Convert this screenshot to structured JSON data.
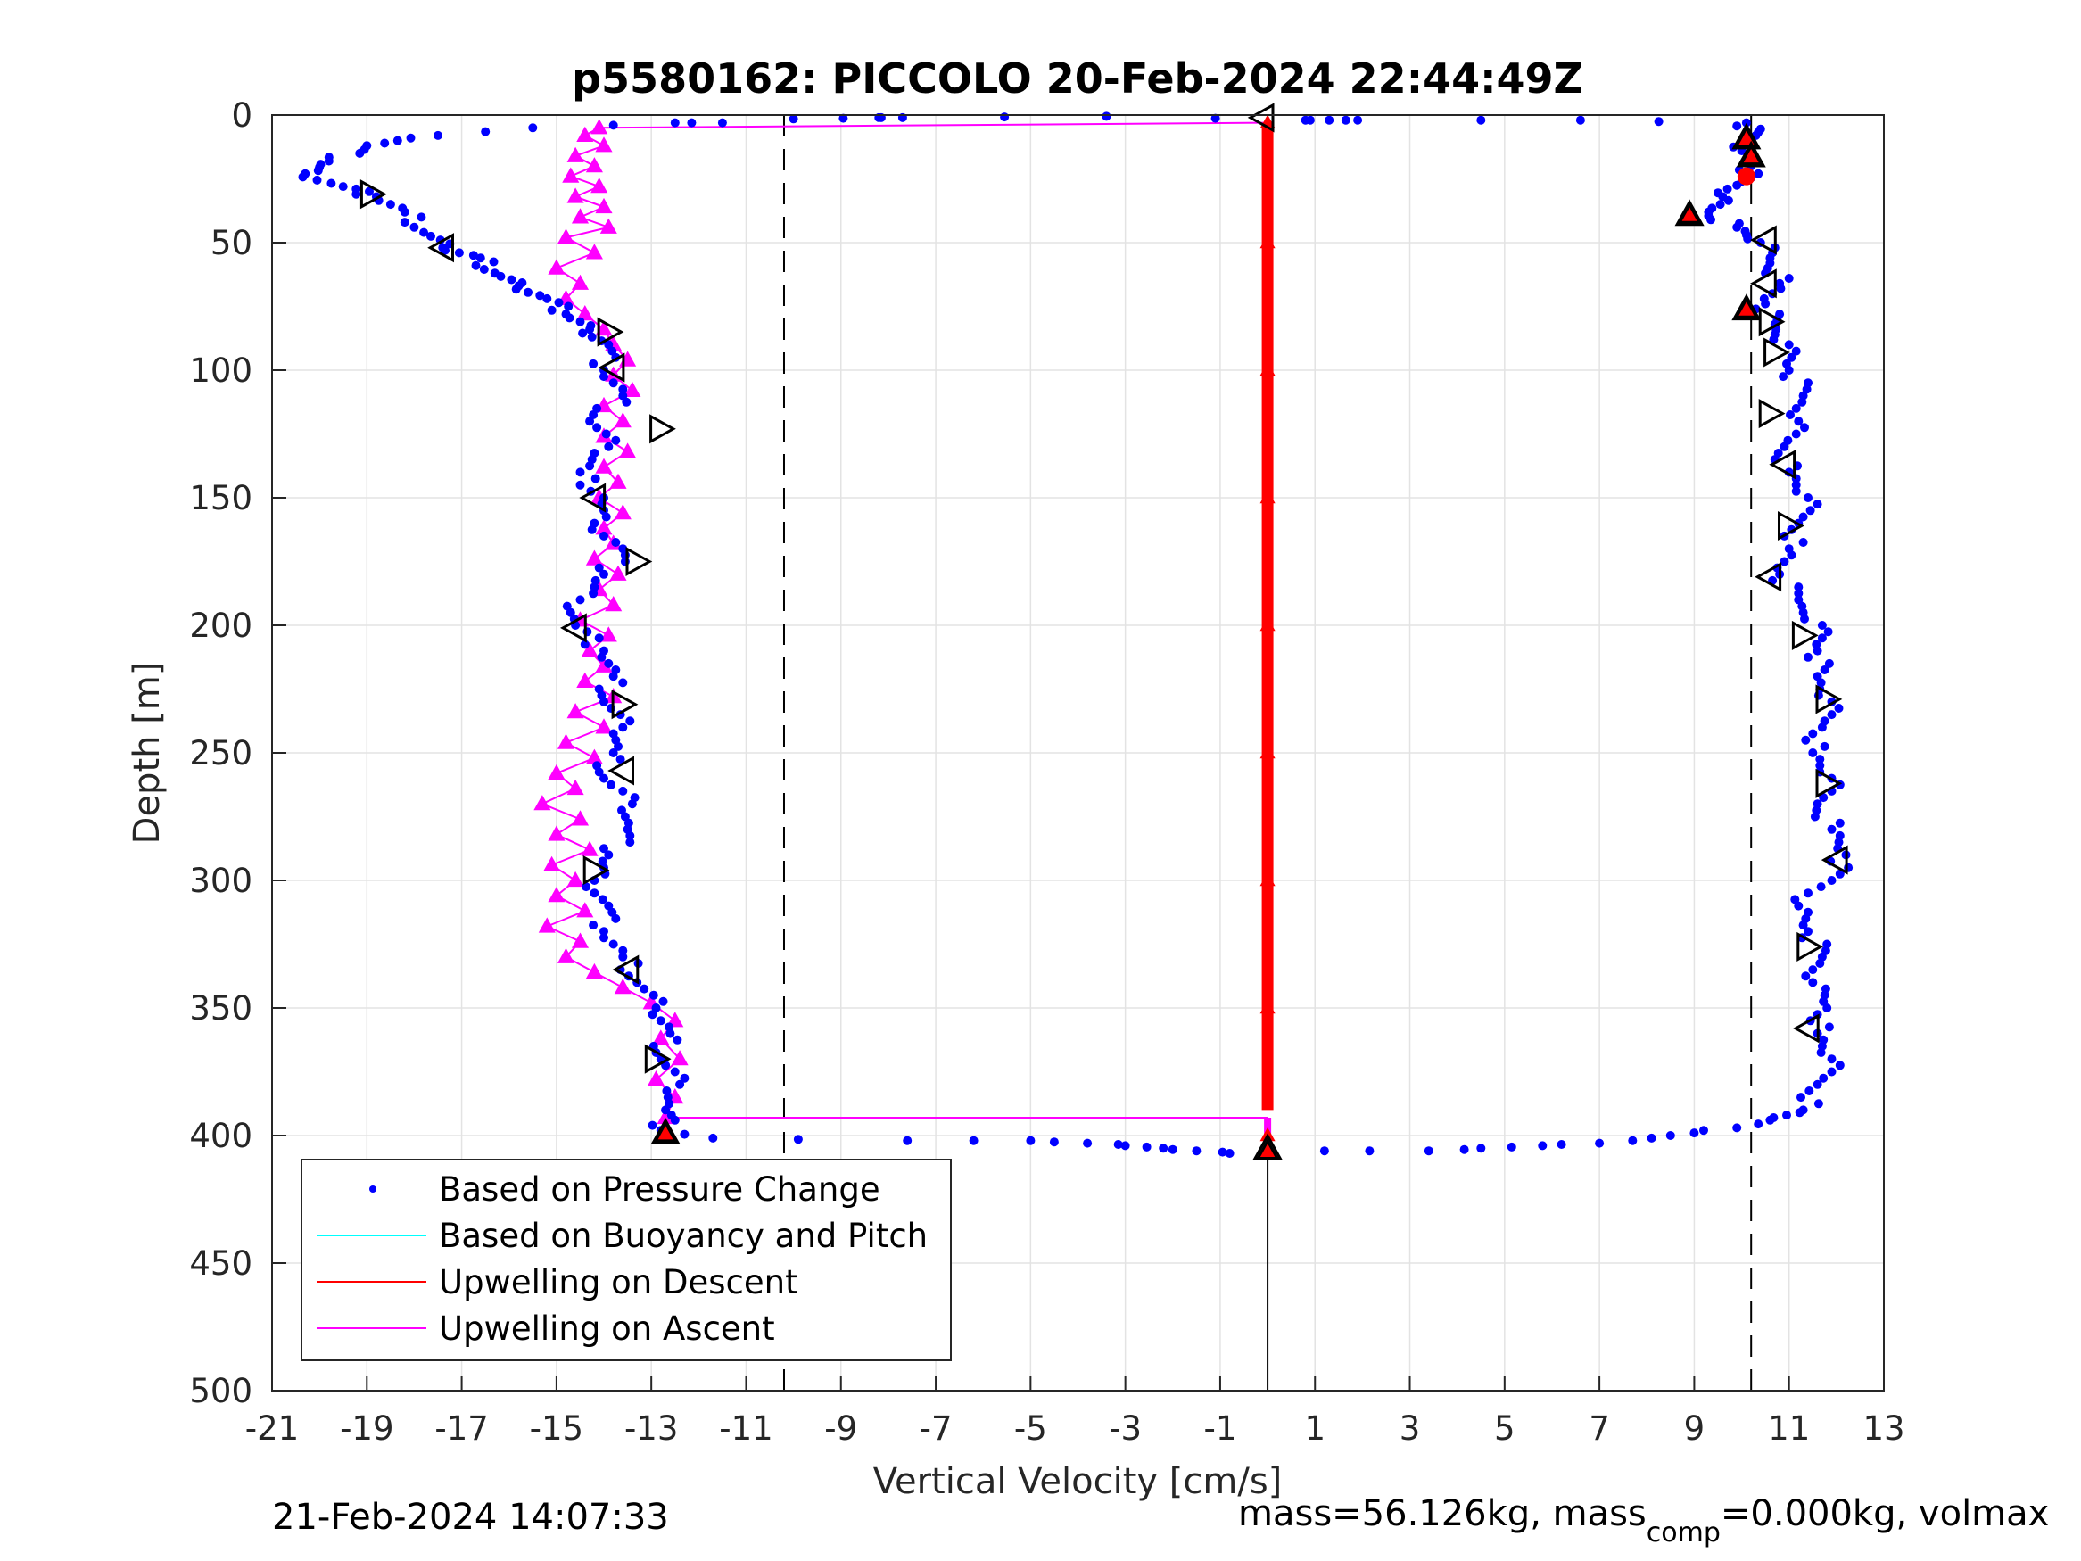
{
  "chart_data": {
    "type": "scatter",
    "title": "p5580162: PICCOLO 20-Feb-2024 22:44:49Z",
    "xlabel": "Vertical Velocity [cm/s]",
    "ylabel": "Depth [m]",
    "xlim": [
      -21,
      13
    ],
    "ylim": [
      0,
      500
    ],
    "y_reversed": true,
    "grid": true,
    "x_ticks": [
      "-21",
      "-19",
      "-17",
      "-15",
      "-13",
      "-11",
      "-9",
      "-7",
      "-5",
      "-3",
      "-1",
      "1",
      "3",
      "5",
      "7",
      "9",
      "11",
      "13"
    ],
    "y_ticks": [
      "0",
      "50",
      "100",
      "150",
      "200",
      "250",
      "300",
      "350",
      "400",
      "450",
      "500"
    ],
    "legend_position": "bottom-left",
    "reference_lines": {
      "dashed_x": [
        -10.2,
        10.2
      ],
      "solid_x": [
        0
      ]
    },
    "series": [
      {
        "name": "Based on Pressure Change",
        "style": "dots",
        "color": "#0000ff",
        "descent": [
          [
            -11.5,
            3
          ],
          [
            -12.5,
            3
          ],
          [
            -15.5,
            5
          ],
          [
            -17.5,
            8
          ],
          [
            -19.0,
            12
          ],
          [
            -19.8,
            18
          ],
          [
            -20.3,
            23
          ],
          [
            -19.5,
            28
          ],
          [
            -18.8,
            32
          ],
          [
            -18.2,
            38
          ],
          [
            -17.8,
            46
          ],
          [
            -17.4,
            52
          ],
          [
            -16.6,
            56
          ],
          [
            -16.3,
            62
          ],
          [
            -15.8,
            67
          ],
          [
            -15.2,
            72
          ],
          [
            -14.8,
            78
          ],
          [
            -14.3,
            84
          ],
          [
            -13.9,
            90
          ],
          [
            -14.0,
            100
          ],
          [
            -13.6,
            110
          ],
          [
            -14.3,
            120
          ],
          [
            -13.9,
            130
          ],
          [
            -14.5,
            140
          ],
          [
            -14.0,
            150
          ],
          [
            -14.2,
            160
          ],
          [
            -13.6,
            170
          ],
          [
            -14.0,
            180
          ],
          [
            -14.5,
            190
          ],
          [
            -14.6,
            200
          ],
          [
            -14.0,
            210
          ],
          [
            -13.8,
            220
          ],
          [
            -14.0,
            230
          ],
          [
            -13.6,
            240
          ],
          [
            -13.8,
            250
          ],
          [
            -14.0,
            260
          ],
          [
            -13.4,
            270
          ],
          [
            -13.5,
            280
          ],
          [
            -13.9,
            290
          ],
          [
            -14.2,
            300
          ],
          [
            -13.9,
            310
          ],
          [
            -14.0,
            320
          ],
          [
            -13.6,
            330
          ],
          [
            -13.3,
            340
          ],
          [
            -12.9,
            350
          ],
          [
            -12.6,
            360
          ],
          [
            -12.8,
            370
          ],
          [
            -12.4,
            380
          ],
          [
            -12.7,
            390
          ],
          [
            -12.8,
            398
          ],
          [
            -11.7,
            401
          ],
          [
            -7.6,
            402
          ],
          [
            -5.0,
            402
          ],
          [
            -3.8,
            403
          ],
          [
            -3.0,
            404
          ],
          [
            -2.2,
            405
          ],
          [
            -1.5,
            406
          ],
          [
            -0.8,
            407
          ]
        ],
        "ascent": [
          [
            1.2,
            406
          ],
          [
            3.4,
            406
          ],
          [
            4.5,
            405
          ],
          [
            5.8,
            404
          ],
          [
            7.0,
            403
          ],
          [
            8.1,
            401
          ],
          [
            9.0,
            399
          ],
          [
            9.9,
            397
          ],
          [
            10.6,
            394
          ],
          [
            11.3,
            390
          ],
          [
            11.6,
            380
          ],
          [
            11.9,
            370
          ],
          [
            11.6,
            360
          ],
          [
            11.8,
            350
          ],
          [
            11.5,
            340
          ],
          [
            11.7,
            330
          ],
          [
            11.4,
            320
          ],
          [
            11.2,
            310
          ],
          [
            11.9,
            300
          ],
          [
            12.2,
            290
          ],
          [
            11.9,
            280
          ],
          [
            11.6,
            270
          ],
          [
            11.9,
            260
          ],
          [
            11.5,
            250
          ],
          [
            11.7,
            240
          ],
          [
            11.9,
            230
          ],
          [
            11.6,
            220
          ],
          [
            11.6,
            210
          ],
          [
            11.7,
            200
          ],
          [
            11.2,
            190
          ],
          [
            10.8,
            180
          ],
          [
            11.0,
            170
          ],
          [
            11.2,
            160
          ],
          [
            11.4,
            150
          ],
          [
            11.0,
            140
          ],
          [
            10.9,
            130
          ],
          [
            11.2,
            120
          ],
          [
            11.3,
            110
          ],
          [
            11.0,
            100
          ],
          [
            11.0,
            90
          ],
          [
            10.7,
            82
          ],
          [
            10.5,
            74
          ],
          [
            10.8,
            66
          ],
          [
            10.6,
            58
          ],
          [
            10.4,
            50
          ],
          [
            9.9,
            44
          ],
          [
            9.3,
            38
          ],
          [
            9.6,
            32
          ],
          [
            10.0,
            26
          ],
          [
            10.2,
            20
          ],
          [
            10.0,
            14
          ],
          [
            10.3,
            8
          ],
          [
            10.1,
            3
          ],
          [
            6.6,
            2
          ],
          [
            1.9,
            2
          ],
          [
            1.3,
            2
          ],
          [
            0.8,
            2
          ],
          [
            -3.4,
            0.5
          ],
          [
            -7.7,
            1
          ],
          [
            -8.2,
            1
          ],
          [
            -10.0,
            1.5
          ]
        ]
      },
      {
        "name": "Based on Buoyancy and Pitch",
        "style": "line",
        "color": "#00ffff",
        "descent": [],
        "ascent": []
      },
      {
        "name": "Upwelling on Descent",
        "style": "line+triangle",
        "color": "#ff0000",
        "descent": [
          [
            0,
            3
          ],
          [
            0,
            50
          ],
          [
            0,
            100
          ],
          [
            0,
            150
          ],
          [
            0,
            200
          ],
          [
            0,
            250
          ],
          [
            0,
            300
          ],
          [
            0,
            350
          ],
          [
            0,
            400
          ],
          [
            0,
            406
          ]
        ],
        "ascent": []
      },
      {
        "name": "Upwelling on Ascent",
        "style": "line+triangle",
        "color": "#ff00ff",
        "descent": [],
        "ascent": [
          [
            -12.7,
            393
          ],
          [
            -12.5,
            385
          ],
          [
            -12.9,
            378
          ],
          [
            -12.4,
            370
          ],
          [
            -12.8,
            362
          ],
          [
            -12.5,
            355
          ],
          [
            -13.0,
            348
          ],
          [
            -13.6,
            342
          ],
          [
            -14.2,
            336
          ],
          [
            -14.8,
            330
          ],
          [
            -14.5,
            324
          ],
          [
            -15.2,
            318
          ],
          [
            -14.4,
            312
          ],
          [
            -15.0,
            306
          ],
          [
            -14.6,
            300
          ],
          [
            -15.1,
            294
          ],
          [
            -14.3,
            288
          ],
          [
            -15.0,
            282
          ],
          [
            -14.5,
            276
          ],
          [
            -15.3,
            270
          ],
          [
            -14.6,
            264
          ],
          [
            -15.0,
            258
          ],
          [
            -14.2,
            252
          ],
          [
            -14.8,
            246
          ],
          [
            -14.0,
            240
          ],
          [
            -14.6,
            234
          ],
          [
            -13.8,
            228
          ],
          [
            -14.4,
            222
          ],
          [
            -14.0,
            216
          ],
          [
            -14.3,
            210
          ],
          [
            -13.9,
            204
          ],
          [
            -14.5,
            198
          ],
          [
            -13.8,
            192
          ],
          [
            -14.1,
            186
          ],
          [
            -13.7,
            180
          ],
          [
            -14.2,
            174
          ],
          [
            -13.8,
            168
          ],
          [
            -14.0,
            162
          ],
          [
            -13.6,
            156
          ],
          [
            -14.1,
            150
          ],
          [
            -13.7,
            144
          ],
          [
            -14.0,
            138
          ],
          [
            -13.5,
            132
          ],
          [
            -14.0,
            126
          ],
          [
            -13.6,
            120
          ],
          [
            -14.0,
            114
          ],
          [
            -13.4,
            108
          ],
          [
            -13.8,
            102
          ],
          [
            -13.5,
            96
          ],
          [
            -13.8,
            90
          ],
          [
            -14.0,
            84
          ],
          [
            -14.4,
            78
          ],
          [
            -14.8,
            72
          ],
          [
            -14.5,
            66
          ],
          [
            -15.0,
            60
          ],
          [
            -14.2,
            54
          ],
          [
            -14.8,
            48
          ],
          [
            -13.9,
            44
          ],
          [
            -14.5,
            40
          ],
          [
            -14.0,
            36
          ],
          [
            -14.6,
            32
          ],
          [
            -14.1,
            28
          ],
          [
            -14.7,
            24
          ],
          [
            -14.2,
            20
          ],
          [
            -14.6,
            16
          ],
          [
            -14.0,
            12
          ],
          [
            -14.4,
            8
          ],
          [
            -14.1,
            5
          ]
        ]
      }
    ],
    "outline_triangles": {
      "color": "#000000",
      "points": [
        {
          "x": -18.9,
          "y": 31,
          "dir": "right"
        },
        {
          "x": -17.4,
          "y": 52,
          "dir": "left"
        },
        {
          "x": -13.9,
          "y": 85,
          "dir": "right"
        },
        {
          "x": -13.8,
          "y": 99,
          "dir": "left"
        },
        {
          "x": -12.8,
          "y": 123,
          "dir": "right"
        },
        {
          "x": -14.2,
          "y": 150,
          "dir": "left"
        },
        {
          "x": -13.3,
          "y": 175,
          "dir": "right"
        },
        {
          "x": -14.6,
          "y": 201,
          "dir": "left"
        },
        {
          "x": -13.6,
          "y": 231,
          "dir": "right"
        },
        {
          "x": -13.6,
          "y": 257,
          "dir": "left"
        },
        {
          "x": -14.2,
          "y": 296,
          "dir": "right"
        },
        {
          "x": -13.5,
          "y": 335,
          "dir": "left"
        },
        {
          "x": -12.9,
          "y": 370,
          "dir": "right"
        },
        {
          "x": -12.7,
          "y": 399,
          "dir": "up"
        },
        {
          "x": -0.1,
          "y": 1,
          "dir": "left"
        },
        {
          "x": 0,
          "y": 405,
          "dir": "up"
        },
        {
          "x": 10.1,
          "y": 9,
          "dir": "up"
        },
        {
          "x": 10.2,
          "y": 16,
          "dir": "up"
        },
        {
          "x": 8.9,
          "y": 39,
          "dir": "up"
        },
        {
          "x": 10.5,
          "y": 49,
          "dir": "left"
        },
        {
          "x": 10.5,
          "y": 66,
          "dir": "left"
        },
        {
          "x": 10.1,
          "y": 76,
          "dir": "up"
        },
        {
          "x": 10.6,
          "y": 81,
          "dir": "right"
        },
        {
          "x": 10.7,
          "y": 93,
          "dir": "right"
        },
        {
          "x": 10.6,
          "y": 117,
          "dir": "right"
        },
        {
          "x": 10.9,
          "y": 137,
          "dir": "left"
        },
        {
          "x": 11.0,
          "y": 161,
          "dir": "right"
        },
        {
          "x": 10.6,
          "y": 181,
          "dir": "left"
        },
        {
          "x": 11.3,
          "y": 204,
          "dir": "right"
        },
        {
          "x": 11.8,
          "y": 229,
          "dir": "right"
        },
        {
          "x": 11.8,
          "y": 262,
          "dir": "right"
        },
        {
          "x": 12.0,
          "y": 292,
          "dir": "left"
        },
        {
          "x": 11.4,
          "y": 326,
          "dir": "right"
        },
        {
          "x": 11.4,
          "y": 358,
          "dir": "left"
        }
      ]
    },
    "red_markers": [
      {
        "x": 10.1,
        "y": 9,
        "shape": "triangle"
      },
      {
        "x": 10.2,
        "y": 16,
        "shape": "triangle"
      },
      {
        "x": 10.1,
        "y": 24,
        "shape": "circle"
      },
      {
        "x": 8.9,
        "y": 39,
        "shape": "triangle"
      },
      {
        "x": 10.1,
        "y": 76,
        "shape": "triangle"
      },
      {
        "x": -12.7,
        "y": 399,
        "shape": "triangle"
      },
      {
        "x": 0,
        "y": 406,
        "shape": "triangle"
      }
    ]
  },
  "footer": {
    "timestamp": "21-Feb-2024 14:07:33",
    "mass_text": "mass=56.126kg, mass",
    "mass_sub": "comp",
    "mass_rest": "=0.000kg, volmax"
  }
}
